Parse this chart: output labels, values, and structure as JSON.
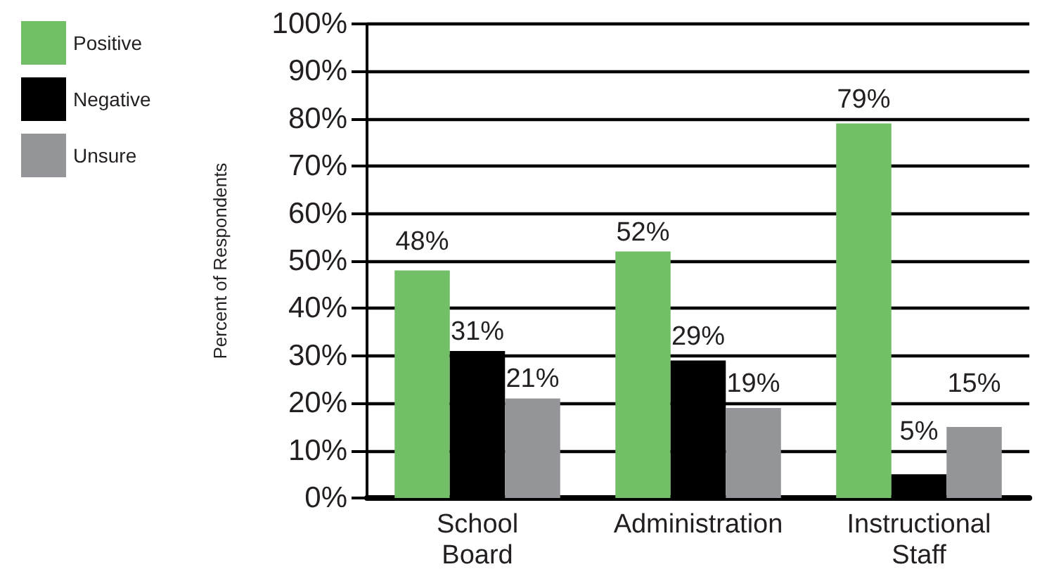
{
  "chart_data": {
    "type": "bar",
    "ylabel": "Percent of Respondents",
    "categories": [
      "School\nBoard",
      "Administration",
      "Instructional\nStaff"
    ],
    "series": [
      {
        "name": "Positive",
        "color": "#72bf67",
        "values": [
          48,
          52,
          79
        ]
      },
      {
        "name": "Negative",
        "color": "#000000",
        "values": [
          31,
          29,
          5
        ]
      },
      {
        "name": "Unsure",
        "color": "#939598",
        "values": [
          21,
          19,
          15
        ]
      }
    ],
    "ylim": [
      0,
      100
    ],
    "yticks": [
      {
        "value": 0,
        "label": "0%"
      },
      {
        "value": 10,
        "label": "10%"
      },
      {
        "value": 20,
        "label": "20%"
      },
      {
        "value": 30,
        "label": "30%"
      },
      {
        "value": 40,
        "label": "40%"
      },
      {
        "value": 50,
        "label": "50%"
      },
      {
        "value": 60,
        "label": "60%"
      },
      {
        "value": 70,
        "label": "70%"
      },
      {
        "value": 80,
        "label": "80%"
      },
      {
        "value": 90,
        "label": "90%"
      },
      {
        "value": 100,
        "label": "100%"
      }
    ],
    "value_labels": [
      [
        "48%",
        "52%",
        "79%"
      ],
      [
        "31%",
        "29%",
        "5%"
      ],
      [
        "21%",
        "19%",
        "15%"
      ]
    ],
    "grid": "y",
    "legend": "top left"
  }
}
